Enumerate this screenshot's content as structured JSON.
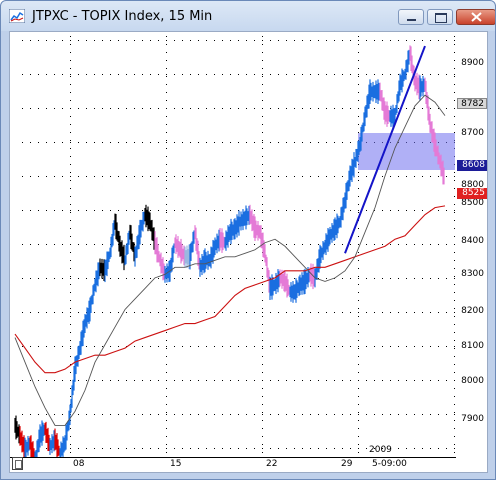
{
  "window": {
    "title": "JTPXC - TOPIX Index, 15 Min"
  },
  "price_axis": {
    "labels": [
      "8900",
      "8800",
      "8700",
      "8500",
      "8400",
      "8300",
      "8200",
      "8100",
      "8000",
      "7900"
    ],
    "tag_gray": "8782",
    "tag_blue": "8608",
    "tag_red": "8525"
  },
  "time_axis": {
    "labels": [
      "08",
      "15",
      "22",
      "29",
      "5-09:00"
    ],
    "year": "2009"
  },
  "colors": {
    "up": "#1a6fe0",
    "up_light": "#9ab9e0",
    "down": "#000000",
    "down_pink": "#e47ad6",
    "extreme_down": "#dd0000",
    "ma_long": "#cc1111",
    "ma_short": "#555555",
    "trendline": "#1414c8",
    "zone": "#7070ee"
  },
  "chart_data": {
    "type": "line",
    "title": "JTPXC - TOPIX Index, 15 Min",
    "xlabel": "",
    "ylabel": "",
    "ylim": [
      7810,
      9020
    ],
    "grid": true,
    "x_ticks": [
      "08",
      "15",
      "22",
      "29",
      "5-09:00"
    ],
    "series": [
      {
        "x": [
          0,
          5,
          10,
          15,
          20,
          25,
          30,
          35,
          40,
          45,
          50,
          55,
          60,
          65,
          70,
          75,
          80,
          85,
          90,
          95,
          100,
          105,
          110,
          115,
          120,
          125,
          130,
          135,
          140,
          145,
          150,
          155,
          160,
          165,
          170,
          175,
          180,
          185,
          190,
          195,
          200,
          205,
          210,
          215,
          220,
          225,
          230,
          235,
          240,
          245,
          250,
          255,
          260,
          265,
          270,
          275,
          280,
          285,
          290,
          295,
          300,
          305,
          310,
          315,
          320,
          325,
          330,
          335,
          340,
          345,
          350,
          355,
          360,
          365,
          370,
          375,
          380,
          385,
          390,
          395,
          400,
          405,
          410,
          415,
          420,
          425,
          430
        ],
        "y": [
          7900,
          7870,
          7830,
          7850,
          7800,
          7870,
          7890,
          7840,
          7860,
          7820,
          7850,
          7930,
          8060,
          8120,
          8190,
          8230,
          8300,
          8350,
          8340,
          8390,
          8480,
          8410,
          8370,
          8450,
          8380,
          8450,
          8500,
          8480,
          8420,
          8370,
          8330,
          8340,
          8420,
          8400,
          8380,
          8380,
          8450,
          8350,
          8370,
          8370,
          8410,
          8430,
          8420,
          8450,
          8460,
          8480,
          8490,
          8500,
          8460,
          8450,
          8390,
          8290,
          8300,
          8320,
          8310,
          8280,
          8280,
          8300,
          8310,
          8330,
          8320,
          8380,
          8410,
          8440,
          8460,
          8480,
          8540,
          8610,
          8650,
          8700,
          8780,
          8850,
          8850,
          8850,
          8790,
          8780,
          8780,
          8870,
          8900,
          8960,
          8880,
          8860,
          8870,
          8760,
          8700,
          8650,
          8600
        ]
      },
      {
        "x": [
          0,
          10,
          20,
          30,
          40,
          50,
          60,
          70,
          80,
          90,
          100,
          110,
          120,
          130,
          140,
          150,
          160,
          170,
          180,
          190,
          200,
          210,
          220,
          230,
          240,
          250,
          260,
          270,
          280,
          290,
          300,
          310,
          320,
          330,
          340,
          350,
          360,
          370,
          380,
          390,
          400,
          410,
          420,
          430
        ],
        "y": [
          8160,
          8120,
          8080,
          8050,
          8050,
          8060,
          8080,
          8090,
          8100,
          8100,
          8110,
          8120,
          8140,
          8150,
          8160,
          8170,
          8180,
          8190,
          8190,
          8200,
          8210,
          8240,
          8270,
          8290,
          8300,
          8310,
          8320,
          8340,
          8340,
          8340,
          8350,
          8350,
          8360,
          8370,
          8380,
          8390,
          8400,
          8410,
          8430,
          8440,
          8470,
          8500,
          8520,
          8525
        ]
      },
      {
        "x": [
          0,
          10,
          20,
          30,
          40,
          50,
          60,
          70,
          80,
          90,
          100,
          110,
          120,
          130,
          140,
          150,
          160,
          170,
          180,
          190,
          200,
          210,
          220,
          230,
          240,
          250,
          260,
          270,
          280,
          290,
          300,
          310,
          320,
          330,
          340,
          350,
          360,
          370,
          380,
          390,
          400,
          410,
          420,
          430
        ],
        "y": [
          8150,
          8080,
          8010,
          7950,
          7900,
          7900,
          7940,
          8000,
          8080,
          8130,
          8180,
          8230,
          8260,
          8290,
          8320,
          8330,
          8350,
          8350,
          8360,
          8360,
          8370,
          8380,
          8380,
          8390,
          8400,
          8420,
          8430,
          8410,
          8380,
          8350,
          8320,
          8310,
          8320,
          8340,
          8380,
          8450,
          8520,
          8610,
          8690,
          8750,
          8810,
          8840,
          8820,
          8782
        ]
      },
      {
        "x": [
          330,
          410
        ],
        "y": [
          8390,
          8980
        ]
      }
    ]
  }
}
